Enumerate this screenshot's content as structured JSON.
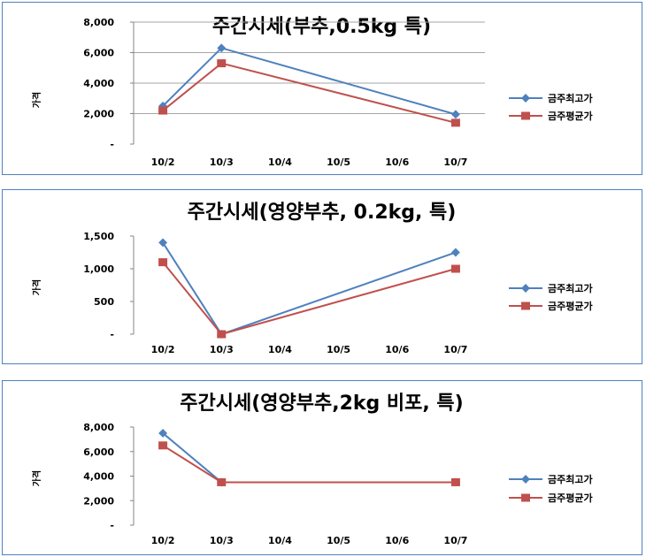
{
  "series_colors": {
    "max": "#4f81bd",
    "avg": "#c0504d"
  },
  "chart_data": [
    {
      "type": "line",
      "title": "주간시세(부추,0.5kg 특)",
      "ylabel": "가격",
      "categories": [
        "10/2",
        "10/3",
        "10/4",
        "10/5",
        "10/6",
        "10/7"
      ],
      "yticks": [
        "8,000",
        "6,000",
        "4,000",
        "2,000",
        "-"
      ],
      "ytick_values": [
        8000,
        6000,
        4000,
        2000,
        0
      ],
      "ylim": [
        0,
        8000
      ],
      "grid": true,
      "legend_position": "right",
      "series": [
        {
          "name": "금주최고가",
          "values": [
            2500,
            6300,
            null,
            null,
            null,
            1950
          ]
        },
        {
          "name": "금주평균가",
          "values": [
            2200,
            5300,
            null,
            null,
            null,
            1400
          ]
        }
      ]
    },
    {
      "type": "line",
      "title": "주간시세(영양부추, 0.2kg, 특)",
      "ylabel": "가격",
      "categories": [
        "10/2",
        "10/3",
        "10/4",
        "10/5",
        "10/6",
        "10/7"
      ],
      "yticks": [
        "1,500",
        "1,000",
        "500",
        "-"
      ],
      "ytick_values": [
        1500,
        1000,
        500,
        0
      ],
      "ylim": [
        0,
        1500
      ],
      "grid": false,
      "legend_position": "right",
      "series": [
        {
          "name": "금주최고가",
          "values": [
            1400,
            0,
            null,
            null,
            null,
            1250
          ]
        },
        {
          "name": "금주평균가",
          "values": [
            1100,
            0,
            null,
            null,
            null,
            1000
          ]
        }
      ]
    },
    {
      "type": "line",
      "title": "주간시세(영양부추,2kg 비포, 특)",
      "ylabel": "가격",
      "categories": [
        "10/2",
        "10/3",
        "10/4",
        "10/5",
        "10/6",
        "10/7"
      ],
      "yticks": [
        "8,000",
        "6,000",
        "4,000",
        "2,000",
        "-"
      ],
      "ytick_values": [
        8000,
        6000,
        4000,
        2000,
        0
      ],
      "ylim": [
        0,
        8000
      ],
      "grid": false,
      "legend_position": "right",
      "series": [
        {
          "name": "금주최고가",
          "values": [
            7500,
            3500,
            null,
            null,
            null,
            3500
          ]
        },
        {
          "name": "금주평균가",
          "values": [
            6500,
            3500,
            null,
            null,
            null,
            3500
          ]
        }
      ]
    }
  ]
}
